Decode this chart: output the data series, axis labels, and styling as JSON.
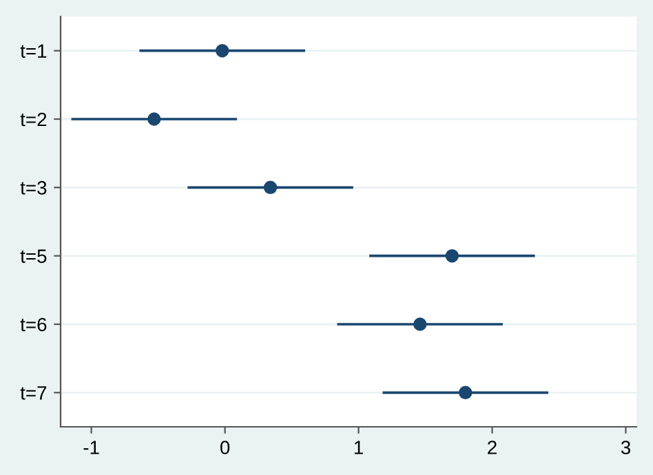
{
  "chart_data": {
    "type": "scatter",
    "orientation": "horizontal",
    "categories": [
      "t=1",
      "t=2",
      "t=3",
      "t=5",
      "t=6",
      "t=7"
    ],
    "series": [
      {
        "color": "#1a476f",
        "values": [
          -0.02,
          -0.53,
          0.34,
          1.7,
          1.46,
          1.8
        ],
        "errors": [
          0.62,
          0.62,
          0.62,
          0.62,
          0.62,
          0.62
        ]
      }
    ],
    "xlim": [
      -1.23,
      3.08
    ],
    "xticks": [
      -1,
      0,
      1,
      2,
      3
    ],
    "grid": "y",
    "marker": "circle"
  }
}
